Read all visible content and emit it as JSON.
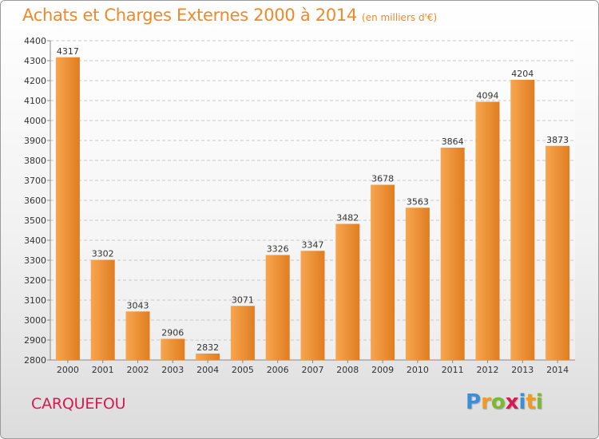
{
  "header": {
    "title": "Achats et Charges Externes 2000 à 2014",
    "subtitle": "(en milliers d'€)"
  },
  "footer": {
    "city": "CARQUEFOU",
    "brand": "Proxiti"
  },
  "colors": {
    "bar_light": "#f7a64f",
    "bar_dark": "#e07d21",
    "title": "#ee8a28",
    "city": "#d8194f",
    "brand": [
      "#3a8fd8",
      "#f29a1e",
      "#7cba2a",
      "#d8194f",
      "#3a8fd8",
      "#f29a1e",
      "#7cba2a"
    ]
  },
  "chart_data": {
    "type": "bar",
    "categories": [
      "2000",
      "2001",
      "2002",
      "2003",
      "2004",
      "2005",
      "2006",
      "2007",
      "2008",
      "2009",
      "2010",
      "2011",
      "2012",
      "2013",
      "2014"
    ],
    "values": [
      4317,
      3302,
      3043,
      2906,
      2832,
      3071,
      3326,
      3347,
      3482,
      3678,
      3563,
      3864,
      4094,
      4204,
      3873
    ],
    "ylim": [
      2800,
      4400
    ],
    "yticks": [
      2800,
      2900,
      3000,
      3100,
      3200,
      3300,
      3400,
      3500,
      3600,
      3700,
      3800,
      3900,
      4000,
      4100,
      4200,
      4300,
      4400
    ],
    "grid": true,
    "data_labels": true
  }
}
